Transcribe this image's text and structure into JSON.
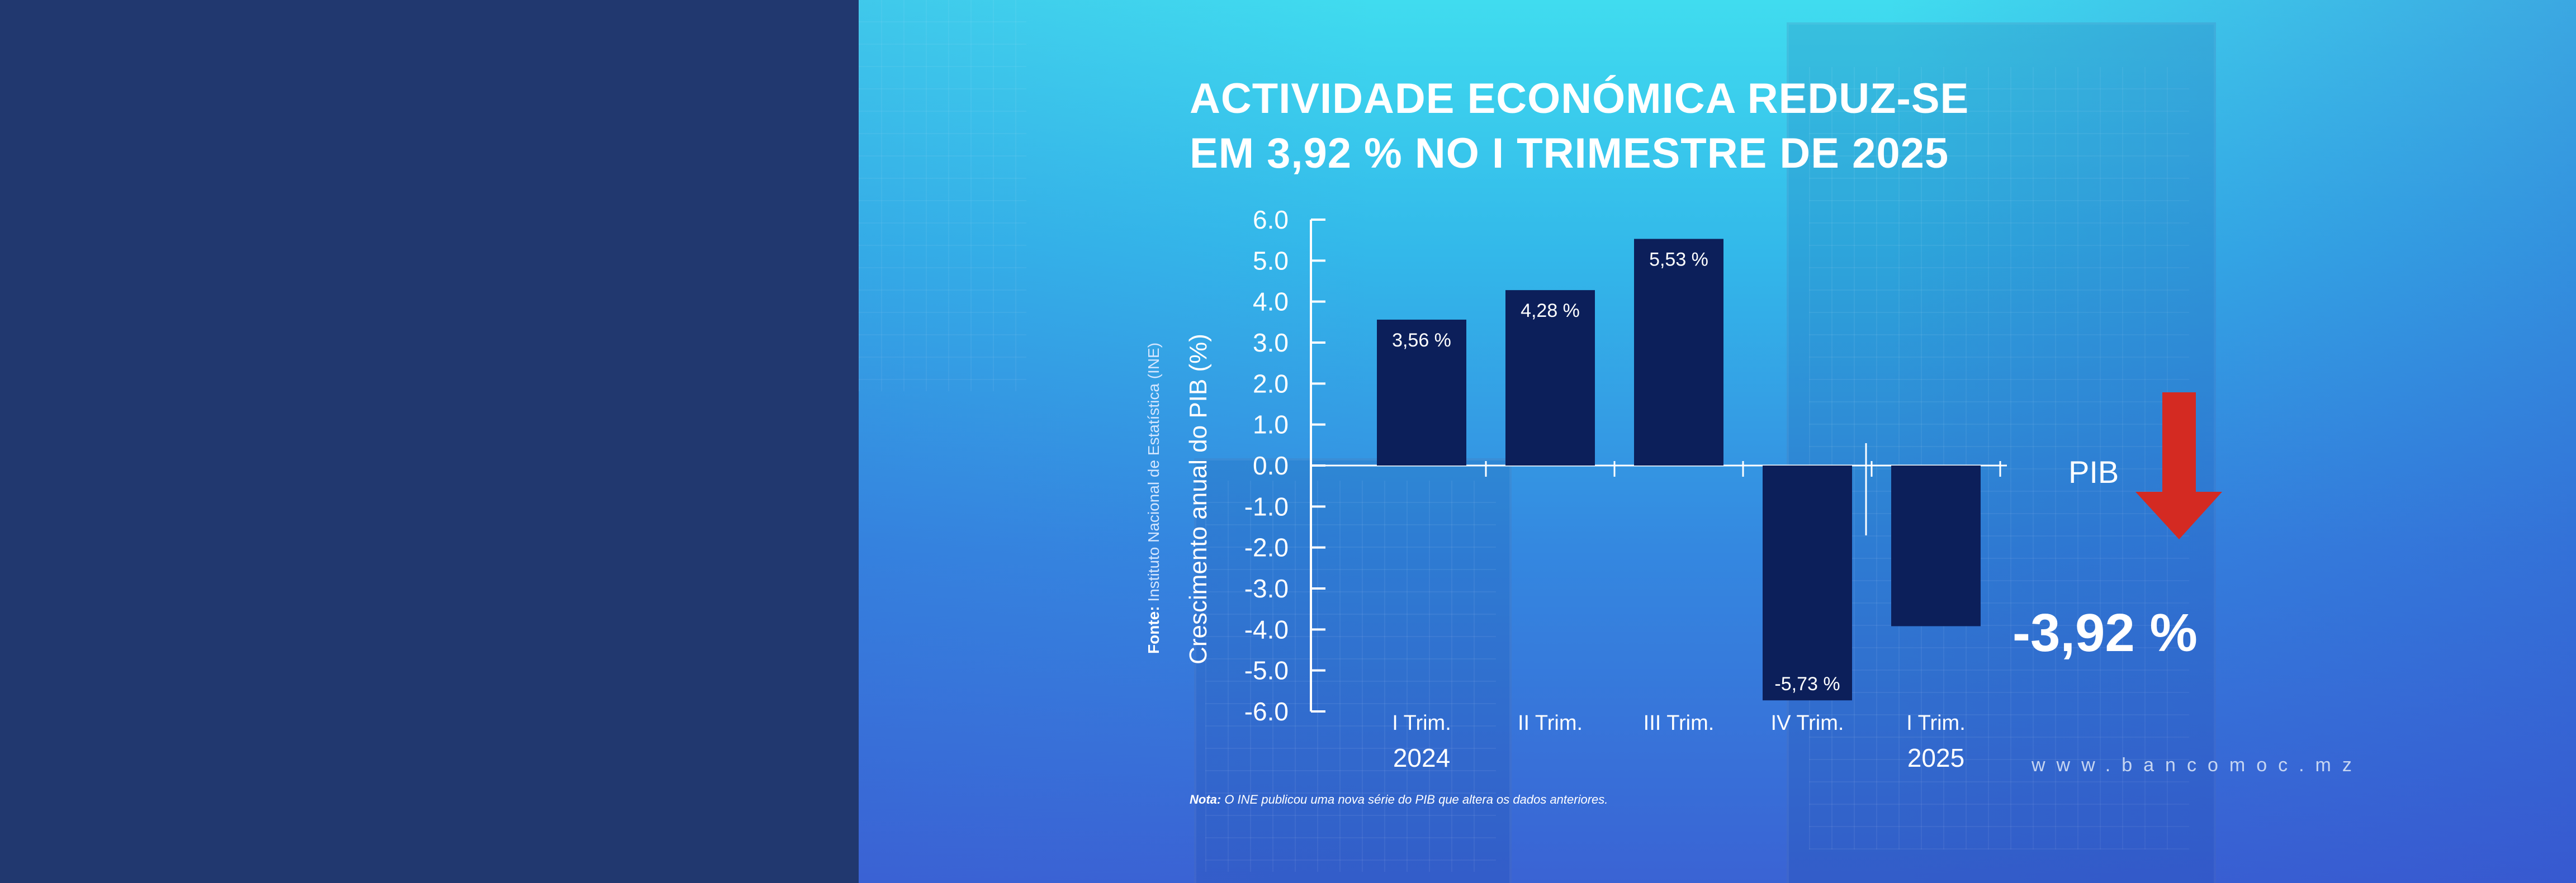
{
  "headline": {
    "line1": "ACTIVIDADE ECONÓMICA REDUZ-SE",
    "line2": "EM 3,92 % NO I TRIMESTRE DE 2025"
  },
  "source": {
    "label": "Fonte:",
    "text": " Instituto Nacional de Estatística (INE)"
  },
  "note": {
    "label": "Nota:",
    "text": " O INE publicou uma nova série do PIB que altera os dados anteriores."
  },
  "indicator": {
    "label": "PIB",
    "value": "-3,92 %",
    "arrow_color": "#d42a22"
  },
  "website": "www.bancomoc.mz",
  "colors": {
    "bar": "#0c1f5a",
    "axis": "#ffffff",
    "left_panel": "#21386f"
  },
  "chart_data": {
    "type": "bar",
    "title": "",
    "ylabel": "Crescimento anual do PIB (%)",
    "xlabel": "",
    "ylim": [
      -6.0,
      6.0
    ],
    "yticks": [
      "6.0",
      "5.0",
      "4.0",
      "3.0",
      "2.0",
      "1.0",
      "0.0",
      "-1.0",
      "-2.0",
      "-3.0",
      "-4.0",
      "-5.0",
      "-6.0"
    ],
    "categories": [
      "I Trim.",
      "II Trim.",
      "III Trim.",
      "IV Trim.",
      "I Trim."
    ],
    "years": [
      {
        "label": "2024",
        "category_index": 0
      },
      {
        "label": "2025",
        "category_index": 4
      }
    ],
    "values": [
      3.56,
      4.28,
      5.53,
      -5.73,
      -3.92
    ],
    "data_labels": [
      "3,56 %",
      "4,28 %",
      "5,53 %",
      "-5,73 %",
      ""
    ]
  }
}
